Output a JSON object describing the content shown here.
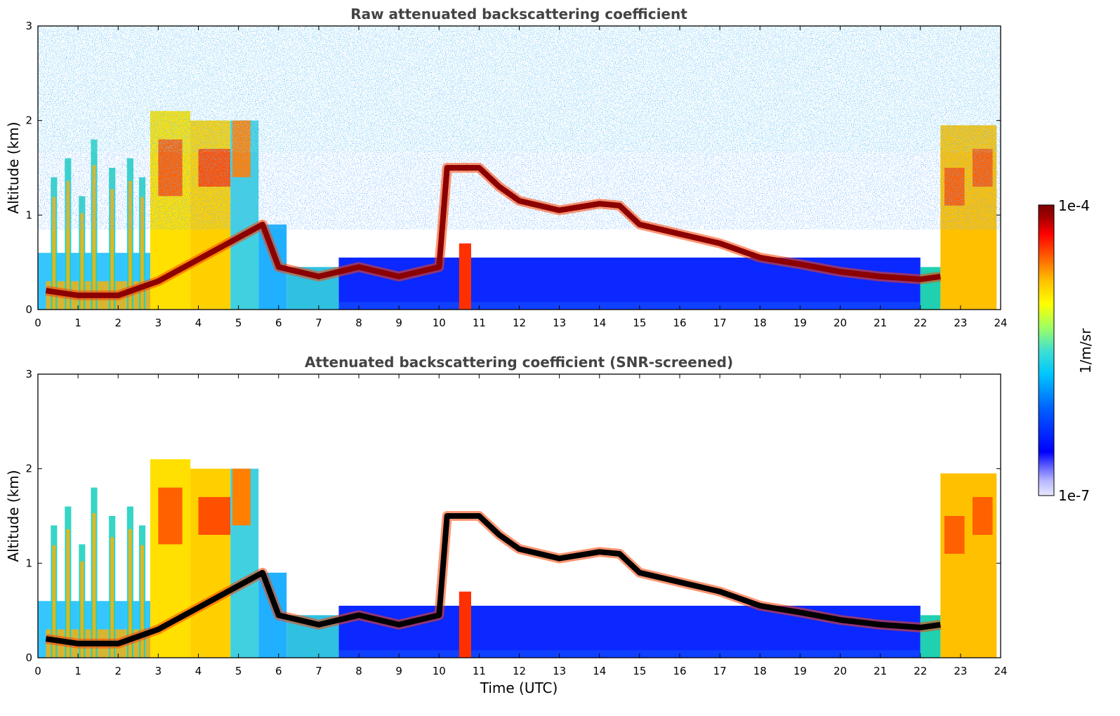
{
  "chart_data": [
    {
      "type": "heatmap",
      "title": "Raw attenuated backscattering coefficient",
      "xlabel": "",
      "ylabel": "Altitude (km)",
      "xlim": [
        0,
        24
      ],
      "ylim": [
        0,
        3
      ],
      "x_ticks": [
        "0",
        "1",
        "2",
        "3",
        "4",
        "5",
        "6",
        "7",
        "8",
        "9",
        "10",
        "11",
        "12",
        "13",
        "14",
        "15",
        "16",
        "17",
        "18",
        "19",
        "20",
        "21",
        "22",
        "23",
        "24"
      ],
      "y_ticks": [
        "0",
        "1",
        "2",
        "3"
      ],
      "colormap": "jet",
      "screened": false,
      "background_noise": true,
      "cloud_layer": {
        "time": [
          0.2,
          1.0,
          2.0,
          3.0,
          5.6,
          6.0,
          7.0,
          8.0,
          9.0,
          10.0,
          10.2,
          11.0,
          11.5,
          12.0,
          13.0,
          14.0,
          14.5,
          15.0,
          16.0,
          17.0,
          18.0,
          19.0,
          20.0,
          21.0,
          22.0,
          22.5
        ],
        "altitude_km": [
          0.2,
          0.15,
          0.15,
          0.3,
          0.9,
          0.45,
          0.35,
          0.45,
          0.35,
          0.45,
          1.5,
          1.5,
          1.3,
          1.15,
          1.05,
          1.12,
          1.1,
          0.9,
          0.8,
          0.7,
          0.55,
          0.48,
          0.4,
          0.35,
          0.32,
          0.35
        ]
      },
      "boundary_layer_top_km": [
        {
          "t0": 0.0,
          "t1": 3.0,
          "alt": 0.5
        },
        {
          "t0": 3.0,
          "t1": 5.5,
          "alt": 2.0
        },
        {
          "t0": 5.5,
          "t1": 7.5,
          "alt": 0.6
        },
        {
          "t0": 7.5,
          "t1": 22.5,
          "alt": 0.55
        },
        {
          "t0": 22.5,
          "t1": 23.9,
          "alt": 1.95
        }
      ]
    },
    {
      "type": "heatmap",
      "title": "Attenuated backscattering coefficient (SNR-screened)",
      "xlabel": "Time (UTC)",
      "ylabel": "Altitude (km)",
      "xlim": [
        0,
        24
      ],
      "ylim": [
        0,
        3
      ],
      "x_ticks": [
        "0",
        "1",
        "2",
        "3",
        "4",
        "5",
        "6",
        "7",
        "8",
        "9",
        "10",
        "11",
        "12",
        "13",
        "14",
        "15",
        "16",
        "17",
        "18",
        "19",
        "20",
        "21",
        "22",
        "23",
        "24"
      ],
      "y_ticks": [
        "0",
        "1",
        "2",
        "3"
      ],
      "colormap": "jet",
      "screened": true,
      "background_noise": false,
      "cloud_color": "#000000",
      "cloud_layer": {
        "time": [
          0.2,
          1.0,
          2.0,
          3.0,
          5.6,
          6.0,
          7.0,
          8.0,
          9.0,
          10.0,
          10.2,
          11.0,
          11.5,
          12.0,
          13.0,
          14.0,
          14.5,
          15.0,
          16.0,
          17.0,
          18.0,
          19.0,
          20.0,
          21.0,
          22.0,
          22.5
        ],
        "altitude_km": [
          0.2,
          0.15,
          0.15,
          0.3,
          0.9,
          0.45,
          0.35,
          0.45,
          0.35,
          0.45,
          1.5,
          1.5,
          1.3,
          1.15,
          1.05,
          1.12,
          1.1,
          0.9,
          0.8,
          0.7,
          0.55,
          0.48,
          0.4,
          0.35,
          0.32,
          0.35
        ]
      }
    }
  ],
  "colorbar": {
    "label": "1/m/sr",
    "max_label": "1e-4",
    "min_label": "1e-7",
    "colors": [
      "#e8e8ff",
      "#b8b8ff",
      "#6060ff",
      "#0000ff",
      "#0060ff",
      "#00c8ff",
      "#40e0d0",
      "#a0ff60",
      "#ffff00",
      "#ffc000",
      "#ff6000",
      "#ff0000",
      "#a00000",
      "#7a0000"
    ]
  }
}
